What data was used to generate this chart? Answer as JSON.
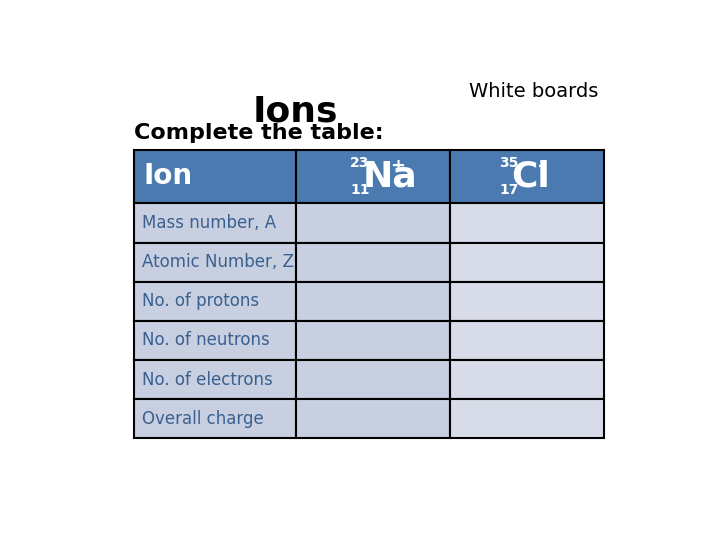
{
  "title": "Ions",
  "subtitle": "White boards",
  "complete_text": "Complete the table:",
  "background_color": "#ffffff",
  "header_bg": "#4a7ab0",
  "header_text_color": "#ffffff",
  "row_bg_col12": "#c8cfe0",
  "row_bg_col3": "#d8dce8",
  "row_label_color": "#3a6090",
  "border_color": "#000000",
  "row_labels": [
    "Mass number, A",
    "Atomic Number, Z",
    "No. of protons",
    "No. of neutrons",
    "No. of electrons",
    "Overall charge"
  ],
  "title_fontsize": 26,
  "subtitle_fontsize": 14,
  "complete_fontsize": 16,
  "header_ion_fontsize": 20,
  "header_symbol_fontsize": 26,
  "header_small_fontsize": 10,
  "header_charge_fontsize": 13,
  "row_fontsize": 12
}
